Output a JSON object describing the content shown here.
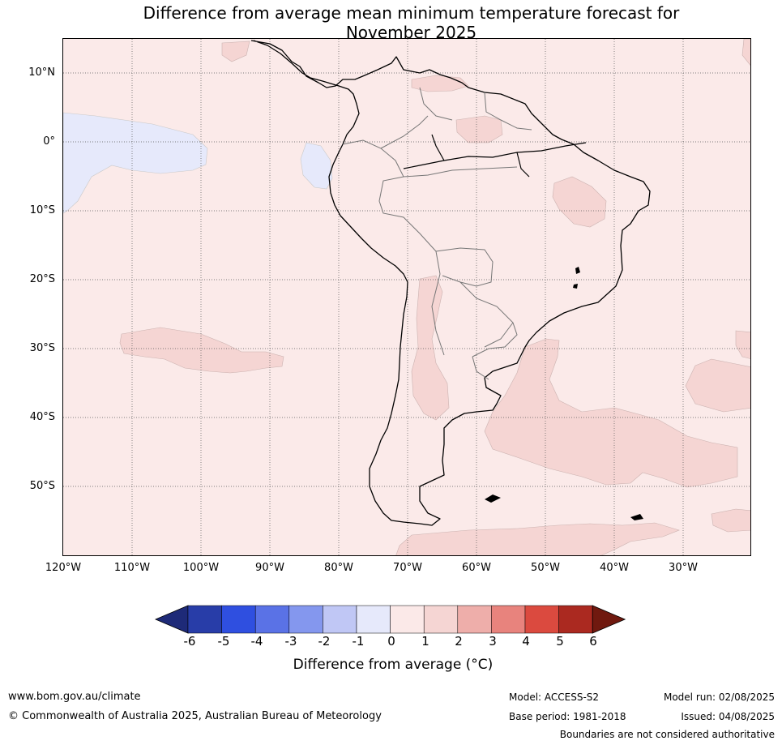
{
  "title_line1": "Difference from average mean minimum temperature forecast for",
  "title_line2": "November 2025",
  "latitude_labels": [
    "10°N",
    "0°",
    "10°S",
    "20°S",
    "30°S",
    "40°S",
    "50°S"
  ],
  "longitude_labels": [
    "120°W",
    "110°W",
    "100°W",
    "90°W",
    "80°W",
    "70°W",
    "60°W",
    "50°W",
    "40°W",
    "30°W"
  ],
  "colorbar": {
    "ticks": [
      "-6",
      "-5",
      "-4",
      "-3",
      "-2",
      "-1",
      "0",
      "1",
      "2",
      "3",
      "4",
      "5",
      "6"
    ],
    "colors": [
      "#283da8",
      "#2f4fe0",
      "#5a72e6",
      "#8497ee",
      "#c0c7f5",
      "#e6e9fb",
      "#fbe9e8",
      "#f5d5d3",
      "#eeaeaa",
      "#e8837d",
      "#db4a3f",
      "#ab2920"
    ],
    "under_color": "#1e2a78",
    "over_color": "#70190f",
    "label": "Difference from average (°C)"
  },
  "footer": {
    "website": "www.bom.gov.au/climate",
    "copyright": "© Commonwealth of Australia 2025, Australian Bureau of Meteorology",
    "model": "Model: ACCESS-S2",
    "base_period": "Base period: 1981-2018",
    "model_run": "Model run: 02/08/2025",
    "issued": "Issued: 04/08/2025",
    "disclaimer": "Boundaries are not considered authoritative"
  }
}
